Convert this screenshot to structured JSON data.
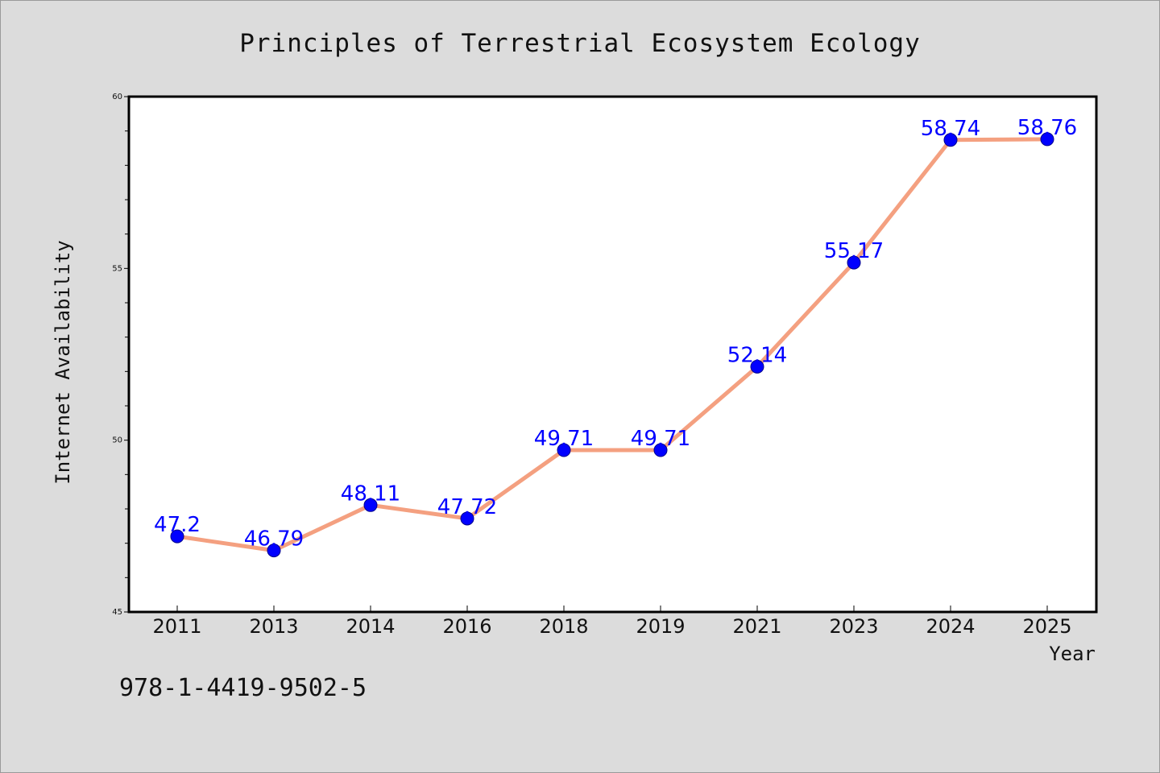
{
  "chart_data": {
    "type": "line",
    "title": "Principles of Terrestrial Ecosystem Ecology",
    "xlabel": "Year",
    "ylabel": "Internet Availability",
    "categories": [
      "2011",
      "2013",
      "2014",
      "2016",
      "2018",
      "2019",
      "2021",
      "2023",
      "2024",
      "2025"
    ],
    "series": [
      {
        "values": [
          47.2,
          46.79,
          48.11,
          47.72,
          49.71,
          49.71,
          52.14,
          55.17,
          58.74,
          58.76
        ],
        "labels": [
          "47.2",
          "46.79",
          "48.11",
          "47.72",
          "49.71",
          "49.71",
          "52.14",
          "55.17",
          "58.74",
          "58.76"
        ],
        "line_color": "#f4a080",
        "marker_color": "#0000ff"
      }
    ],
    "ylim": [
      45,
      60
    ],
    "y_ticks": [
      "45",
      "50",
      "55",
      "60"
    ],
    "grid": false,
    "legend": "none",
    "background": "#ffffff",
    "figure_background": "#dcdcdc"
  },
  "footnote": "978-1-4419-9502-5"
}
